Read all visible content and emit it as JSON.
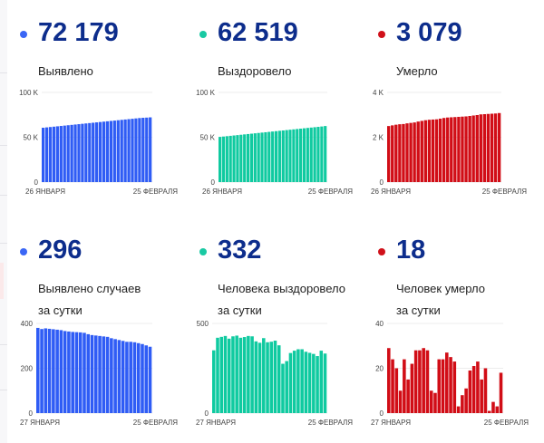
{
  "panels": [
    {
      "id": "detected",
      "value": "72 179",
      "label": [
        "Выявлено"
      ],
      "color": "#2f5cf5",
      "dot": "#3a66f5"
    },
    {
      "id": "recovered",
      "value": "62 519",
      "label": [
        "Выздоровело"
      ],
      "color": "#0fcaa0",
      "dot": "#19c9a3"
    },
    {
      "id": "died",
      "value": "3 079",
      "label": [
        "Умерло"
      ],
      "color": "#d10d16",
      "dot": "#d0111a"
    },
    {
      "id": "detected-daily",
      "value": "296",
      "label": [
        "Выявлено случаев",
        "за сутки"
      ],
      "color": "#2f5cf5",
      "dot": "#3a66f5"
    },
    {
      "id": "recovered-daily",
      "value": "332",
      "label": [
        "Человека выздоровело",
        "за сутки"
      ],
      "color": "#0fcaa0",
      "dot": "#19c9a3"
    },
    {
      "id": "died-daily",
      "value": "18",
      "label": [
        "Человек умерло",
        "за сутки"
      ],
      "color": "#d10d16",
      "dot": "#d0111a"
    }
  ],
  "chart_data": [
    {
      "type": "bar",
      "title": "Выявлено",
      "ylim": [
        0,
        100000
      ],
      "yticks": [
        0,
        50000,
        100000
      ],
      "ytick_labels": [
        "0",
        "50 K",
        "100 K"
      ],
      "x_labels": [
        "26 ЯНВАРЯ",
        "25 ФЕВРАЛЯ"
      ],
      "values": [
        60600,
        61000,
        61400,
        61800,
        62200,
        62600,
        63000,
        63400,
        63800,
        64200,
        64600,
        65000,
        65400,
        65800,
        66200,
        66600,
        67000,
        67400,
        67800,
        68200,
        68600,
        69000,
        69400,
        69800,
        70200,
        70600,
        71000,
        71400,
        71700,
        71900,
        72179
      ]
    },
    {
      "type": "bar",
      "title": "Выздоровело",
      "ylim": [
        0,
        100000
      ],
      "yticks": [
        0,
        50000,
        100000
      ],
      "ytick_labels": [
        "0",
        "50 K",
        "100 K"
      ],
      "x_labels": [
        "26 ЯНВАРЯ",
        "25 ФЕВРАЛЯ"
      ],
      "values": [
        50400,
        50800,
        51200,
        51600,
        52000,
        52400,
        52800,
        53200,
        53600,
        54000,
        54400,
        54800,
        55200,
        55600,
        56000,
        56400,
        56800,
        57200,
        57600,
        58000,
        58400,
        58800,
        59200,
        59600,
        60000,
        60400,
        60800,
        61200,
        61600,
        62000,
        62519
      ]
    },
    {
      "type": "bar",
      "title": "Умерло",
      "ylim": [
        0,
        4000
      ],
      "yticks": [
        0,
        2000,
        4000
      ],
      "ytick_labels": [
        "0",
        "2 K",
        "4 K"
      ],
      "x_labels": [
        "26 ЯНВАРЯ",
        "25 ФЕВРАЛЯ"
      ],
      "values": [
        2500,
        2530,
        2560,
        2580,
        2590,
        2620,
        2640,
        2660,
        2700,
        2730,
        2760,
        2780,
        2790,
        2800,
        2830,
        2860,
        2880,
        2890,
        2900,
        2910,
        2920,
        2930,
        2950,
        2970,
        2990,
        3020,
        3030,
        3040,
        3050,
        3060,
        3079
      ]
    },
    {
      "type": "bar",
      "title": "Выявлено случаев за сутки",
      "ylim": [
        0,
        400
      ],
      "yticks": [
        0,
        200,
        400
      ],
      "ytick_labels": [
        "0",
        "200",
        "400"
      ],
      "x_labels": [
        "27 ЯНВАРЯ",
        "25 ФЕВРАЛЯ"
      ],
      "values": [
        380,
        375,
        378,
        376,
        374,
        372,
        370,
        366,
        364,
        362,
        361,
        360,
        358,
        352,
        348,
        346,
        344,
        342,
        340,
        334,
        330,
        326,
        322,
        318,
        318,
        316,
        312,
        308,
        302,
        296
      ]
    },
    {
      "type": "bar",
      "title": "Человека выздоровело за сутки",
      "ylim": [
        0,
        500
      ],
      "yticks": [
        0,
        500
      ],
      "ytick_labels": [
        "0",
        "500"
      ],
      "x_labels": [
        "27 ЯНВАРЯ",
        "25 ФЕВРАЛЯ"
      ],
      "values": [
        350,
        420,
        425,
        430,
        415,
        428,
        432,
        420,
        424,
        430,
        428,
        400,
        392,
        418,
        395,
        398,
        404,
        378,
        275,
        290,
        335,
        348,
        356,
        356,
        342,
        336,
        330,
        318,
        348,
        332
      ]
    },
    {
      "type": "bar",
      "title": "Человек умерло за сутки",
      "ylim": [
        0,
        40
      ],
      "yticks": [
        0,
        20,
        40
      ],
      "ytick_labels": [
        "0",
        "20",
        "40"
      ],
      "x_labels": [
        "27 ЯНВАРЯ",
        "25 ФЕВРАЛЯ"
      ],
      "values": [
        29,
        24,
        20,
        10,
        24,
        15,
        22,
        28,
        28,
        29,
        28,
        10,
        9,
        24,
        24,
        27,
        25,
        23,
        3,
        8,
        11,
        19,
        21,
        23,
        15,
        20,
        1,
        5,
        3,
        18
      ]
    }
  ]
}
